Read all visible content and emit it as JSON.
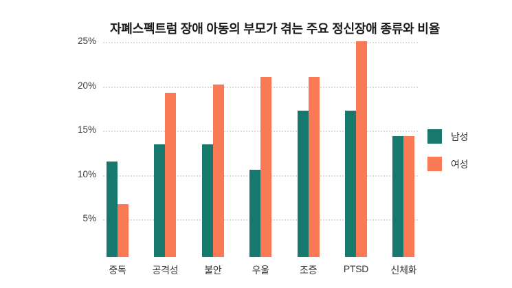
{
  "chart_data": {
    "type": "bar",
    "title": "자폐스펙트럼 장애 아동의 부모가 겪는 주요 정신장애 종류와 비율",
    "categories": [
      "중독",
      "공격성",
      "불안",
      "우울",
      "조증",
      "PTSD",
      "신체화"
    ],
    "series": [
      {
        "name": "남성",
        "color": "#17796E",
        "values": [
          11.5,
          13.5,
          13.5,
          10.6,
          17.3,
          17.3,
          14.4
        ]
      },
      {
        "name": "여성",
        "color": "#FA7A56",
        "values": [
          6.7,
          19.3,
          20.2,
          21.1,
          21.1,
          25.1,
          14.4
        ]
      }
    ],
    "xlabel": "",
    "ylabel": "",
    "y_ticks": [
      5,
      10,
      15,
      20,
      25
    ],
    "y_tick_suffix": "%",
    "ylim": [
      0.75,
      25.5
    ],
    "grid": "horizontal-dotted",
    "gridline_color": "#dcdcdc",
    "legend_position": "right",
    "background_color": "#ffffff"
  }
}
